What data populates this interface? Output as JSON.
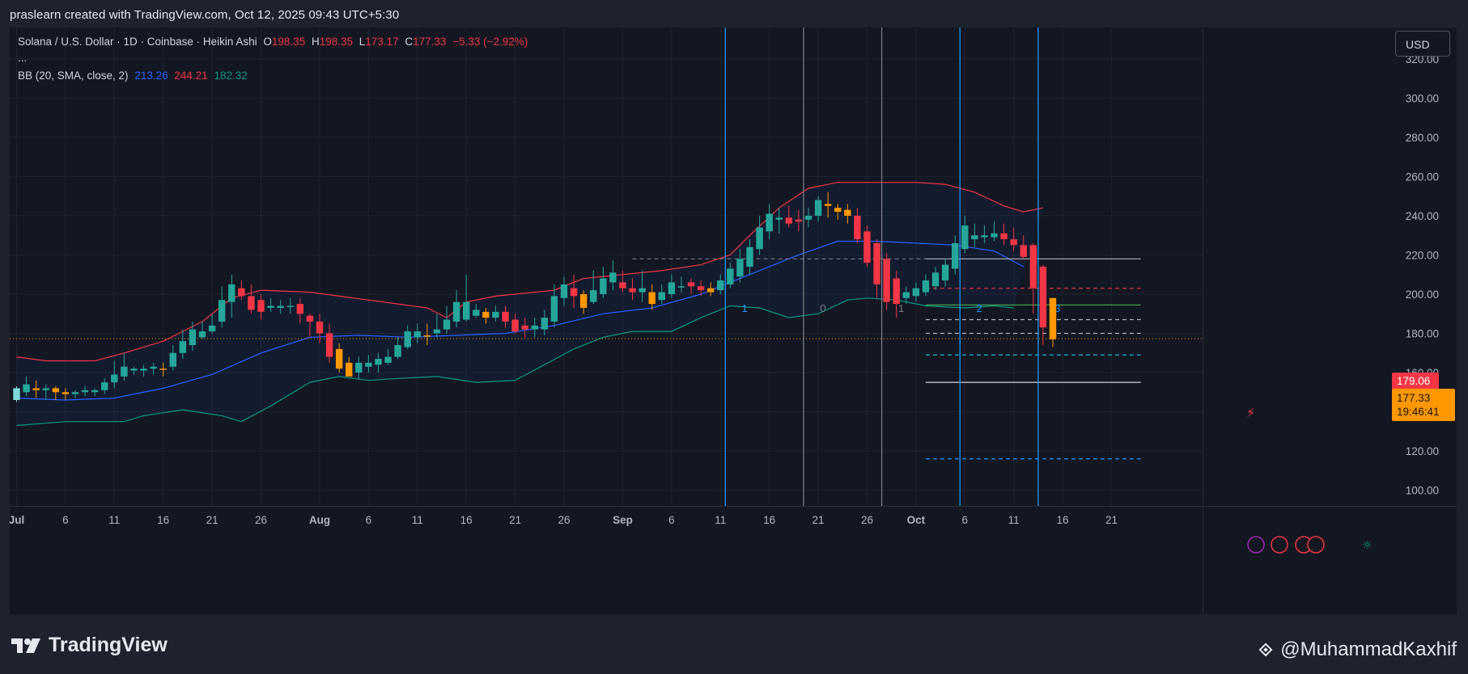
{
  "header": {
    "text": "praslearn created with TradingView.com, Oct 12, 2025 09:43 UTC+5:30"
  },
  "legend": {
    "symbol": "Solana / U.S. Dollar · 1D · Coinbase · Heikin Ashi",
    "o_label": "O",
    "o_value": "198.35",
    "h_label": "H",
    "h_value": "198.35",
    "l_label": "L",
    "l_value": "173.17",
    "c_label": "C",
    "c_value": "177.33",
    "change": "−5.33 (−2.92%)",
    "ellipsis": "...",
    "bb_label": "BB (20, SMA, close, 2)",
    "bb_basis": "213.26",
    "bb_upper": "244.21",
    "bb_lower": "182.32"
  },
  "currency": "USD",
  "price_badges": {
    "high_marker": "179.06",
    "last_price": "177.33",
    "countdown": "19:46:41"
  },
  "footer": {
    "brand": "TradingView",
    "handle": "@MuhammadKaxhif"
  },
  "colors": {
    "bull": "#26a69a",
    "bull_dark": "#089981",
    "bear": "#f23645",
    "orange": "#ff9800",
    "basis": "#2962ff",
    "upper": "#f23645",
    "lower": "#089981",
    "background": "#131722"
  },
  "chart_data": {
    "type": "candlestick",
    "style": "Heikin Ashi",
    "ylim": [
      92,
      336
    ],
    "y_ticks": [
      100,
      120,
      140,
      160,
      180,
      200,
      220,
      240,
      260,
      280,
      300,
      320
    ],
    "y_tick_labels": [
      "100.00",
      "120.00",
      "140.00",
      "160.00",
      "180.00",
      "200.00",
      "220.00",
      "240.00",
      "260.00",
      "280.00",
      "300.00",
      "320.00"
    ],
    "x_ticks": [
      {
        "label": "Jul",
        "day": 0,
        "bold": true
      },
      {
        "label": "6",
        "day": 5
      },
      {
        "label": "11",
        "day": 10
      },
      {
        "label": "16",
        "day": 15
      },
      {
        "label": "21",
        "day": 20
      },
      {
        "label": "26",
        "day": 25
      },
      {
        "label": "Aug",
        "day": 31,
        "bold": true
      },
      {
        "label": "6",
        "day": 36
      },
      {
        "label": "11",
        "day": 41
      },
      {
        "label": "16",
        "day": 46
      },
      {
        "label": "21",
        "day": 51
      },
      {
        "label": "26",
        "day": 56
      },
      {
        "label": "Sep",
        "day": 62,
        "bold": true
      },
      {
        "label": "6",
        "day": 67
      },
      {
        "label": "11",
        "day": 72
      },
      {
        "label": "16",
        "day": 77
      },
      {
        "label": "21",
        "day": 82
      },
      {
        "label": "26",
        "day": 87
      },
      {
        "label": "Oct",
        "day": 92,
        "bold": true
      },
      {
        "label": "6",
        "day": 97
      },
      {
        "label": "11",
        "day": 102
      },
      {
        "label": "16",
        "day": 107
      },
      {
        "label": "21",
        "day": 112
      }
    ],
    "candles": [
      [
        146,
        152,
        145,
        153,
        "u"
      ],
      [
        150,
        154,
        148,
        158,
        "u"
      ],
      [
        152,
        151,
        147,
        156,
        "o"
      ],
      [
        151,
        152,
        146,
        154,
        "u"
      ],
      [
        152,
        150,
        146,
        153,
        "o"
      ],
      [
        150,
        149,
        146,
        152,
        "o"
      ],
      [
        149,
        150,
        147,
        151,
        "u"
      ],
      [
        150,
        151,
        148,
        153,
        "u"
      ],
      [
        150,
        151,
        148,
        152,
        "u"
      ],
      [
        151,
        155,
        149,
        157,
        "u"
      ],
      [
        155,
        159,
        152,
        166,
        "u"
      ],
      [
        158,
        163,
        156,
        170,
        "u"
      ],
      [
        161,
        162,
        159,
        163,
        "u"
      ],
      [
        161,
        162,
        158,
        164,
        "u"
      ],
      [
        162,
        163,
        159,
        165,
        "u"
      ],
      [
        162,
        162,
        158,
        165,
        "o"
      ],
      [
        163,
        170,
        161,
        174,
        "u"
      ],
      [
        170,
        176,
        167,
        182,
        "u"
      ],
      [
        174,
        182,
        171,
        186,
        "u"
      ],
      [
        178,
        181,
        177,
        186,
        "u"
      ],
      [
        181,
        184,
        180,
        190,
        "u"
      ],
      [
        186,
        197,
        183,
        204,
        "u"
      ],
      [
        196,
        205,
        188,
        210,
        "u"
      ],
      [
        203,
        199,
        197,
        207,
        "d"
      ],
      [
        199,
        192,
        190,
        205,
        "d"
      ],
      [
        197,
        191,
        187,
        200,
        "d"
      ],
      [
        193,
        194,
        191,
        198,
        "u"
      ],
      [
        193,
        194,
        190,
        197,
        "u"
      ],
      [
        194,
        194,
        190,
        198,
        "u"
      ],
      [
        195,
        190,
        185,
        198,
        "d"
      ],
      [
        189,
        186,
        178,
        190,
        "d"
      ],
      [
        186,
        180,
        175,
        190,
        "d"
      ],
      [
        180,
        168,
        165,
        185,
        "d"
      ],
      [
        172,
        162,
        160,
        175,
        "o"
      ],
      [
        165,
        158,
        158,
        168,
        "o"
      ],
      [
        160,
        165,
        157,
        168,
        "u"
      ],
      [
        163,
        165,
        160,
        169,
        "u"
      ],
      [
        164,
        167,
        160,
        170,
        "u"
      ],
      [
        165,
        168,
        164,
        172,
        "u"
      ],
      [
        168,
        174,
        167,
        178,
        "u"
      ],
      [
        173,
        181,
        172,
        184,
        "u"
      ],
      [
        178,
        181,
        175,
        185,
        "u"
      ],
      [
        179,
        179,
        174,
        185,
        "o"
      ],
      [
        180,
        182,
        178,
        190,
        "u"
      ],
      [
        182,
        187,
        180,
        194,
        "u"
      ],
      [
        186,
        196,
        183,
        202,
        "u"
      ],
      [
        196,
        187,
        186,
        210,
        "u"
      ],
      [
        189,
        192,
        188,
        195,
        "u"
      ],
      [
        191,
        188,
        185,
        193,
        "o"
      ],
      [
        188,
        191,
        186,
        194,
        "u"
      ],
      [
        191,
        186,
        183,
        194,
        "d"
      ],
      [
        187,
        181,
        180,
        190,
        "d"
      ],
      [
        184,
        182,
        178,
        188,
        "d"
      ],
      [
        182,
        184,
        178,
        188,
        "u"
      ],
      [
        182,
        188,
        179,
        192,
        "u"
      ],
      [
        186,
        199,
        183,
        205,
        "u"
      ],
      [
        198,
        205,
        194,
        209,
        "u"
      ],
      [
        203,
        199,
        193,
        210,
        "d"
      ],
      [
        200,
        193,
        190,
        202,
        "o"
      ],
      [
        196,
        202,
        195,
        212,
        "u"
      ],
      [
        200,
        208,
        198,
        214,
        "u"
      ],
      [
        206,
        211,
        202,
        217,
        "u"
      ],
      [
        206,
        203,
        201,
        212,
        "d"
      ],
      [
        203,
        201,
        197,
        208,
        "d"
      ],
      [
        201,
        203,
        196,
        212,
        "u"
      ],
      [
        201,
        195,
        192,
        205,
        "o"
      ],
      [
        197,
        201,
        195,
        205,
        "u"
      ],
      [
        200,
        206,
        198,
        210,
        "u"
      ],
      [
        204,
        204,
        201,
        209,
        "u"
      ],
      [
        206,
        204,
        200,
        208,
        "d"
      ],
      [
        204,
        202,
        199,
        207,
        "d"
      ],
      [
        201,
        203,
        199,
        206,
        "o"
      ],
      [
        202,
        207,
        200,
        210,
        "u"
      ],
      [
        205,
        213,
        203,
        216,
        "u"
      ],
      [
        209,
        218,
        206,
        223,
        "u"
      ],
      [
        214,
        224,
        210,
        228,
        "u"
      ],
      [
        223,
        234,
        220,
        240,
        "u"
      ],
      [
        232,
        241,
        228,
        246,
        "u"
      ],
      [
        238,
        239,
        231,
        244,
        "u"
      ],
      [
        239,
        236,
        234,
        245,
        "d"
      ],
      [
        237,
        238,
        232,
        243,
        "d"
      ],
      [
        238,
        240,
        234,
        244,
        "u"
      ],
      [
        240,
        248,
        237,
        250,
        "u"
      ],
      [
        246,
        245,
        239,
        252,
        "o"
      ],
      [
        244,
        242,
        238,
        246,
        "o"
      ],
      [
        243,
        240,
        236,
        246,
        "o"
      ],
      [
        240,
        228,
        226,
        244,
        "d"
      ],
      [
        232,
        216,
        214,
        235,
        "d"
      ],
      [
        226,
        205,
        198,
        228,
        "d"
      ],
      [
        218,
        196,
        192,
        221,
        "d"
      ],
      [
        208,
        195,
        188,
        212,
        "d"
      ],
      [
        201,
        198,
        195,
        204,
        "u"
      ],
      [
        199,
        203,
        196,
        206,
        "u"
      ],
      [
        201,
        207,
        199,
        210,
        "u"
      ],
      [
        204,
        211,
        202,
        214,
        "u"
      ],
      [
        207,
        215,
        204,
        218,
        "u"
      ],
      [
        213,
        226,
        210,
        230,
        "u"
      ],
      [
        223,
        235,
        221,
        240,
        "u"
      ],
      [
        228,
        230,
        224,
        236,
        "u"
      ],
      [
        229,
        230,
        226,
        235,
        "u"
      ],
      [
        229,
        231,
        227,
        237,
        "u"
      ],
      [
        231,
        228,
        225,
        236,
        "d"
      ],
      [
        228,
        225,
        222,
        234,
        "d"
      ],
      [
        225,
        219,
        218,
        230,
        "d"
      ],
      [
        225,
        203,
        190,
        226,
        "d"
      ],
      [
        214,
        183,
        174,
        215,
        "d"
      ],
      [
        198,
        177,
        173,
        198,
        "o"
      ]
    ],
    "bollinger": {
      "upper": [
        {
          "day": 0,
          "v": 168
        },
        {
          "day": 3,
          "v": 166
        },
        {
          "day": 8,
          "v": 166
        },
        {
          "day": 11,
          "v": 170
        },
        {
          "day": 15,
          "v": 176
        },
        {
          "day": 19,
          "v": 186
        },
        {
          "day": 22,
          "v": 198
        },
        {
          "day": 25,
          "v": 202
        },
        {
          "day": 30,
          "v": 201
        },
        {
          "day": 33,
          "v": 199
        },
        {
          "day": 36,
          "v": 197
        },
        {
          "day": 39,
          "v": 195
        },
        {
          "day": 42,
          "v": 193
        },
        {
          "day": 44,
          "v": 188
        },
        {
          "day": 46,
          "v": 196
        },
        {
          "day": 49,
          "v": 199
        },
        {
          "day": 55,
          "v": 202
        },
        {
          "day": 58,
          "v": 208
        },
        {
          "day": 62,
          "v": 210
        },
        {
          "day": 66,
          "v": 212
        },
        {
          "day": 70,
          "v": 215
        },
        {
          "day": 73,
          "v": 220
        },
        {
          "day": 75,
          "v": 230
        },
        {
          "day": 78,
          "v": 244
        },
        {
          "day": 81,
          "v": 254
        },
        {
          "day": 84,
          "v": 257
        },
        {
          "day": 88,
          "v": 257
        },
        {
          "day": 92,
          "v": 257
        },
        {
          "day": 95,
          "v": 256
        },
        {
          "day": 98,
          "v": 252
        },
        {
          "day": 101,
          "v": 245
        },
        {
          "day": 103,
          "v": 242
        },
        {
          "day": 105,
          "v": 244
        }
      ],
      "basis": [
        {
          "day": 0,
          "v": 147
        },
        {
          "day": 5,
          "v": 146
        },
        {
          "day": 10,
          "v": 147
        },
        {
          "day": 15,
          "v": 152
        },
        {
          "day": 20,
          "v": 159
        },
        {
          "day": 25,
          "v": 170
        },
        {
          "day": 30,
          "v": 178
        },
        {
          "day": 35,
          "v": 179
        },
        {
          "day": 40,
          "v": 178
        },
        {
          "day": 45,
          "v": 179
        },
        {
          "day": 50,
          "v": 180
        },
        {
          "day": 55,
          "v": 184
        },
        {
          "day": 60,
          "v": 190
        },
        {
          "day": 65,
          "v": 193
        },
        {
          "day": 70,
          "v": 200
        },
        {
          "day": 75,
          "v": 210
        },
        {
          "day": 80,
          "v": 220
        },
        {
          "day": 84,
          "v": 227
        },
        {
          "day": 88,
          "v": 227
        },
        {
          "day": 92,
          "v": 226
        },
        {
          "day": 96,
          "v": 225
        },
        {
          "day": 100,
          "v": 222
        },
        {
          "day": 103,
          "v": 214
        }
      ],
      "lower": [
        {
          "day": 0,
          "v": 133
        },
        {
          "day": 5,
          "v": 135
        },
        {
          "day": 11,
          "v": 135
        },
        {
          "day": 13,
          "v": 138
        },
        {
          "day": 17,
          "v": 141
        },
        {
          "day": 21,
          "v": 138
        },
        {
          "day": 23,
          "v": 135
        },
        {
          "day": 26,
          "v": 143
        },
        {
          "day": 30,
          "v": 155
        },
        {
          "day": 33,
          "v": 158
        },
        {
          "day": 36,
          "v": 156
        },
        {
          "day": 39,
          "v": 157
        },
        {
          "day": 43,
          "v": 158
        },
        {
          "day": 47,
          "v": 155
        },
        {
          "day": 51,
          "v": 156
        },
        {
          "day": 54,
          "v": 164
        },
        {
          "day": 57,
          "v": 172
        },
        {
          "day": 60,
          "v": 178
        },
        {
          "day": 63,
          "v": 181
        },
        {
          "day": 67,
          "v": 181
        },
        {
          "day": 70,
          "v": 188
        },
        {
          "day": 73,
          "v": 194
        },
        {
          "day": 76,
          "v": 193
        },
        {
          "day": 79,
          "v": 188
        },
        {
          "day": 82,
          "v": 190
        },
        {
          "day": 85,
          "v": 197
        },
        {
          "day": 87,
          "v": 198
        },
        {
          "day": 90,
          "v": 197
        },
        {
          "day": 93,
          "v": 194
        },
        {
          "day": 97,
          "v": 193
        },
        {
          "day": 100,
          "v": 194
        },
        {
          "day": 102,
          "v": 193
        }
      ]
    },
    "vertical_lines": [
      {
        "day": 72.5,
        "color": "#2196f3",
        "label": "1"
      },
      {
        "day": 80.5,
        "color": "#787b86",
        "label": "0"
      },
      {
        "day": 88.5,
        "color": "#787b86",
        "label": "1"
      },
      {
        "day": 96.5,
        "color": "#2196f3",
        "label": "2"
      },
      {
        "day": 104.5,
        "color": "#2196f3",
        "label": "3"
      }
    ],
    "horizontal_lines": [
      {
        "v": 218,
        "day_from": 63,
        "day_to": 93,
        "color": "#787b86",
        "dash": true
      },
      {
        "v": 218,
        "day_from": 93,
        "day_to": 115,
        "color": "#b2b5be",
        "dash": false
      },
      {
        "v": 203,
        "day_from": 93,
        "day_to": 115,
        "color": "#f23645",
        "dash": true
      },
      {
        "v": 194.5,
        "day_from": 93,
        "day_to": 115,
        "color": "#4caf50",
        "dash": false
      },
      {
        "v": 187,
        "day_from": 93,
        "day_to": 115,
        "color": "#b2b5be",
        "dash": true
      },
      {
        "v": 180,
        "day_from": 93,
        "day_to": 115,
        "color": "#b2b5be",
        "dash": true
      },
      {
        "v": 169,
        "day_from": 93,
        "day_to": 115,
        "color": "#26c6da",
        "dash": true
      },
      {
        "v": 155,
        "day_from": 93,
        "day_to": 115,
        "color": "#d1d4dc",
        "dash": false
      },
      {
        "v": 116,
        "day_from": 93,
        "day_to": 115,
        "color": "#2196f3",
        "dash": true
      }
    ],
    "last_price_line": {
      "v": 177.33,
      "color": "#ff9800"
    }
  }
}
